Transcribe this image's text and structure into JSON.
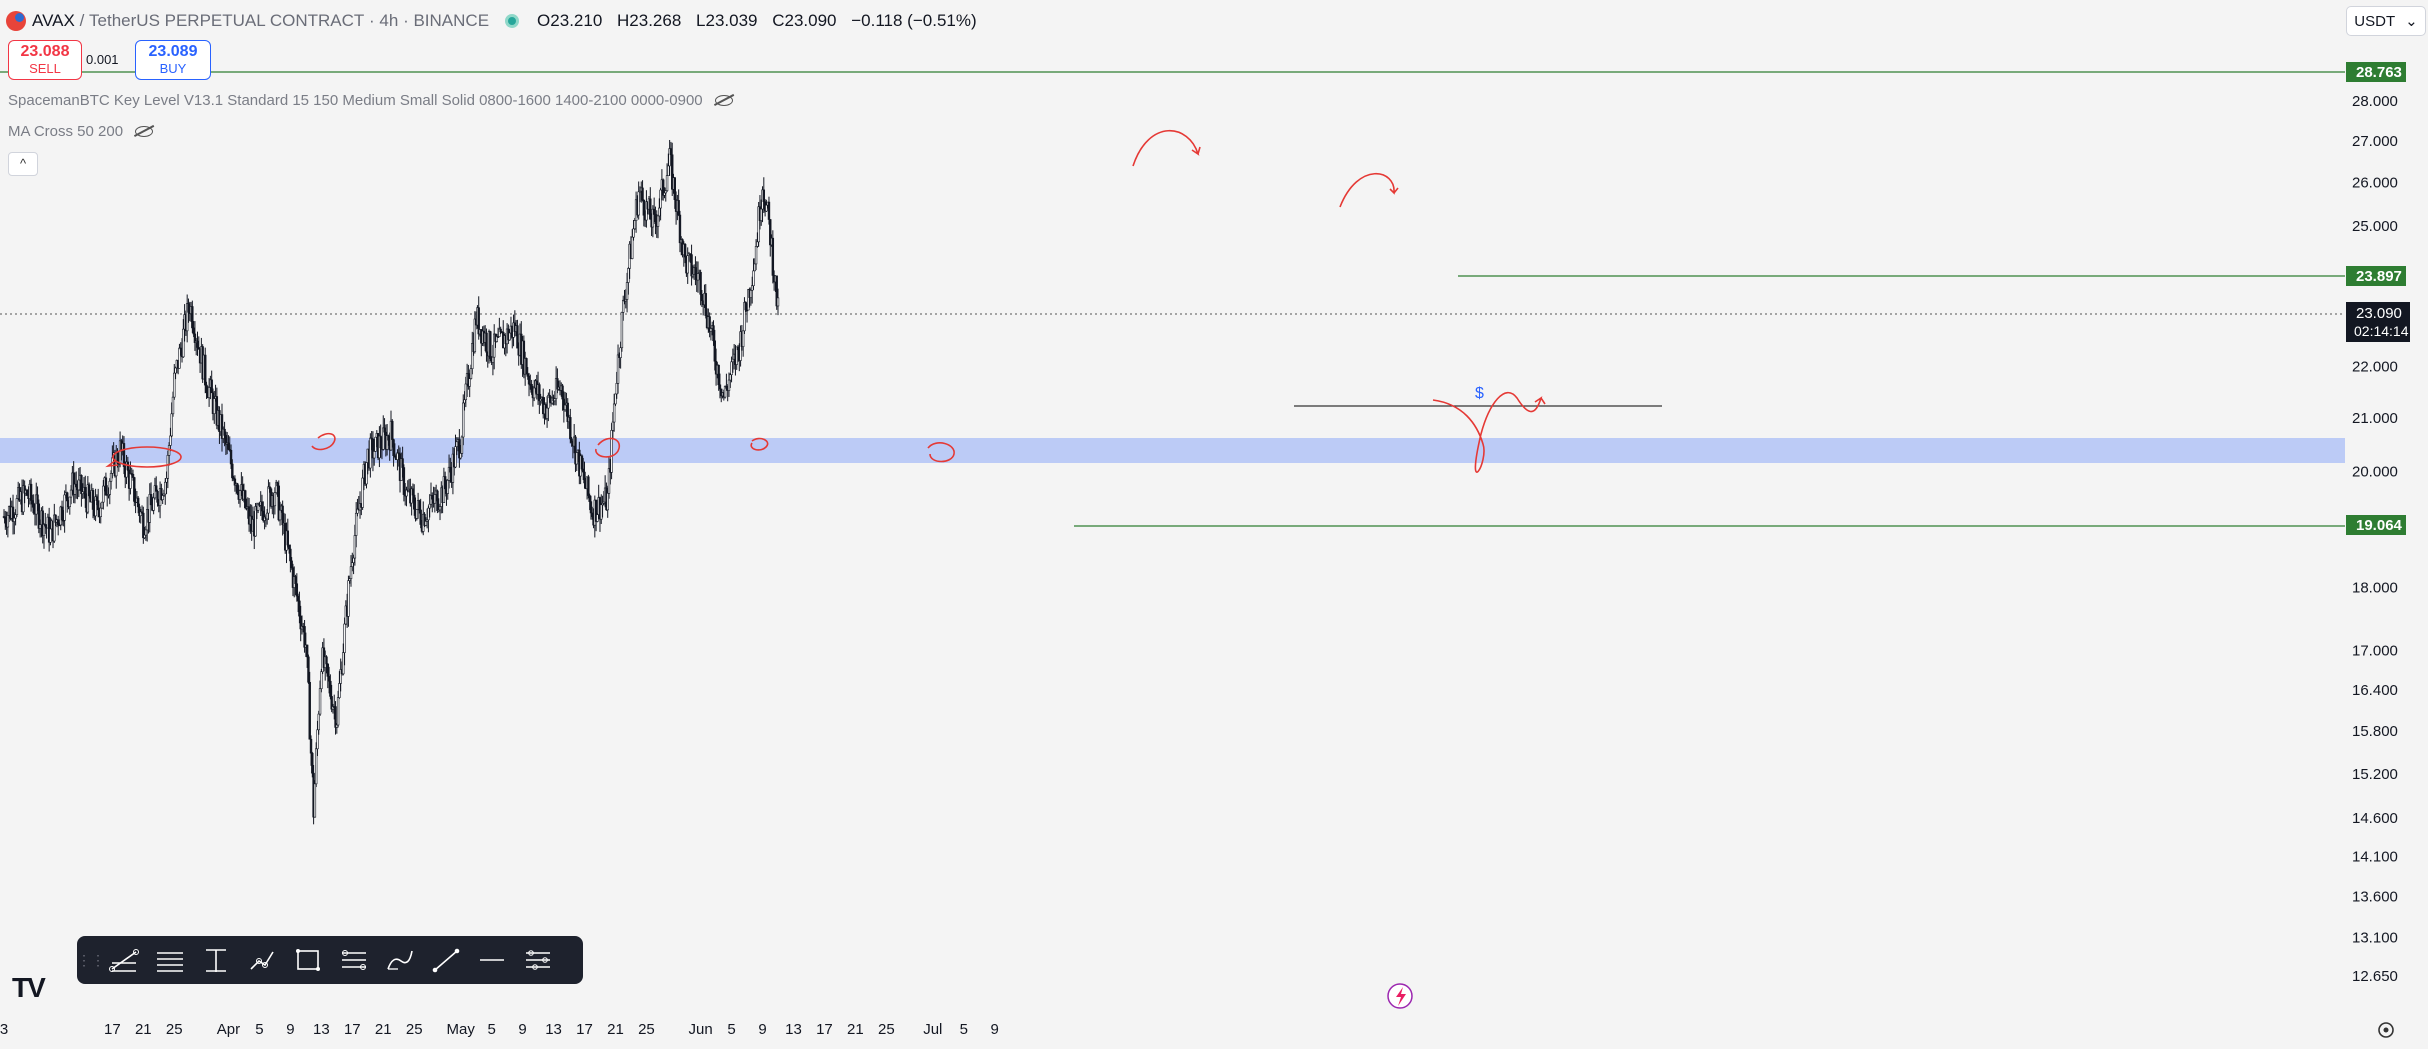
{
  "header": {
    "symbol": "AVAX",
    "separator": "/",
    "contract": "TetherUS PERPETUAL CONTRACT",
    "dot1": "·",
    "timeframe": "4h",
    "dot2": "·",
    "exchange": "BINANCE",
    "ohlc": {
      "o_label": "O",
      "o": "23.210",
      "h_label": "H",
      "h": "23.268",
      "l_label": "L",
      "l": "23.039",
      "c_label": "C",
      "c": "23.090",
      "change": "−0.118 (−0.51%)"
    }
  },
  "trade": {
    "sell_price": "23.088",
    "sell_label": "SELL",
    "spread": "0.001",
    "buy_price": "23.089",
    "buy_label": "BUY"
  },
  "indicators": [
    "SpacemanBTC Key Level V13.1 Standard 15 150 Medium Small Solid 0800-1600 1400-2100 0000-0900",
    "MA Cross 50 200"
  ],
  "currency": "USDT",
  "colors": {
    "up": "#131722",
    "down": "#131722",
    "level_green": "#2e7d32",
    "zone_blue": "#b8c8f5",
    "annotation_red": "#e53935",
    "price_tag_dark": "#131722"
  },
  "toolbar_icons": [
    "drag-handle-icon",
    "trend-line-icon",
    "horizontal-ray-icon",
    "vertical-line-icon",
    "path-icon",
    "rectangle-icon",
    "fib-retracement-icon",
    "curve-icon",
    "line-icon",
    "horizontal-line-icon",
    "long-position-icon"
  ],
  "chart_data": {
    "type": "candlestick",
    "timeframe": "4h",
    "y_ticks": [
      "28.000",
      "27.000",
      "26.000",
      "25.000",
      "22.000",
      "21.000",
      "20.000",
      "18.000",
      "17.000",
      "16.400",
      "15.800",
      "15.200",
      "14.600",
      "14.100",
      "13.600",
      "13.100",
      "12.650"
    ],
    "x_ticks": [
      "3",
      "17",
      "21",
      "25",
      "Apr",
      "5",
      "9",
      "13",
      "17",
      "21",
      "25",
      "May",
      "5",
      "9",
      "13",
      "17",
      "21",
      "25",
      "Jun",
      "5",
      "9",
      "13",
      "17",
      "21",
      "25",
      "Jul",
      "5",
      "9"
    ],
    "price_labels": {
      "upper_level": "28.763",
      "resistance": "23.897",
      "last_price": "23.090",
      "countdown": "02:14:14",
      "support": "19.064"
    },
    "levels": [
      28.763,
      23.897,
      19.064,
      21.25
    ],
    "zone": [
      20.25,
      20.55
    ],
    "approx_path": [
      [
        "Mar 3",
        19.2
      ],
      [
        "Mar 6",
        19.6
      ],
      [
        "Mar 9",
        18.9
      ],
      [
        "Mar 12",
        19.8
      ],
      [
        "Mar 15",
        19.3
      ],
      [
        "Mar 18",
        20.4
      ],
      [
        "Mar 21",
        19.1
      ],
      [
        "Mar 24",
        19.9
      ],
      [
        "Mar 25",
        21.7
      ],
      [
        "Mar 27",
        23.3
      ],
      [
        "Mar 29",
        21.8
      ],
      [
        "Apr 1",
        20.3
      ],
      [
        "Apr 4",
        19.0
      ],
      [
        "Apr 7",
        19.7
      ],
      [
        "Apr 9",
        18.4
      ],
      [
        "Apr 11",
        17.1
      ],
      [
        "Apr 12",
        14.7
      ],
      [
        "Apr 13",
        16.9
      ],
      [
        "Apr 15",
        16.0
      ],
      [
        "Apr 17",
        18.6
      ],
      [
        "Apr 19",
        20.3
      ],
      [
        "Apr 22",
        20.7
      ],
      [
        "Apr 24",
        19.6
      ],
      [
        "Apr 26",
        19.2
      ],
      [
        "Apr 29",
        19.7
      ],
      [
        "May 1",
        20.6
      ],
      [
        "May 3",
        23.0
      ],
      [
        "May 5",
        22.3
      ],
      [
        "May 8",
        22.8
      ],
      [
        "May 10",
        21.7
      ],
      [
        "May 12",
        21.2
      ],
      [
        "May 14",
        21.6
      ],
      [
        "May 16",
        20.3
      ],
      [
        "May 18",
        19.3
      ],
      [
        "May 20",
        19.5
      ],
      [
        "May 21",
        21.6
      ],
      [
        "May 22",
        23.2
      ],
      [
        "May 24",
        25.8
      ],
      [
        "May 26",
        25.0
      ],
      [
        "May 28",
        26.5
      ],
      [
        "May 30",
        24.2
      ],
      [
        "Jun 1",
        23.8
      ],
      [
        "Jun 3",
        22.1
      ],
      [
        "Jun 4",
        21.4
      ],
      [
        "Jun 6",
        22.4
      ],
      [
        "Jun 8",
        24.3
      ],
      [
        "Jun 9",
        26.0
      ],
      [
        "Jun 10",
        24.8
      ],
      [
        "Jun 11",
        23.1
      ]
    ],
    "annotation_text": "$"
  }
}
